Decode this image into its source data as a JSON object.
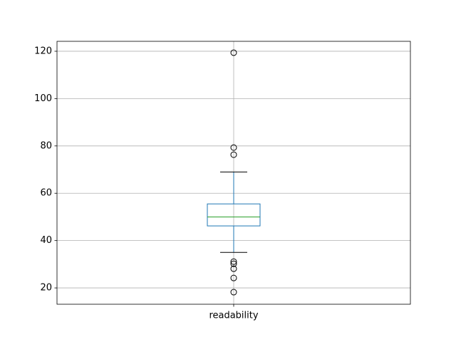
{
  "chart_data": {
    "type": "box",
    "categories": [
      "readability"
    ],
    "boxes": [
      {
        "whislo": 35,
        "q1": 46.2,
        "median": 50,
        "q3": 55.5,
        "whishi": 69,
        "fliers": [
          119.4,
          79.3,
          76.3,
          31.1,
          30.2,
          28.1,
          24.2,
          18.2
        ]
      }
    ],
    "color": "#1f77b4",
    "median_color": "#2ca02c",
    "ylim": [
      13.1,
      124.2
    ],
    "yticks": [
      20,
      40,
      60,
      80,
      100,
      120
    ],
    "grid": true
  }
}
